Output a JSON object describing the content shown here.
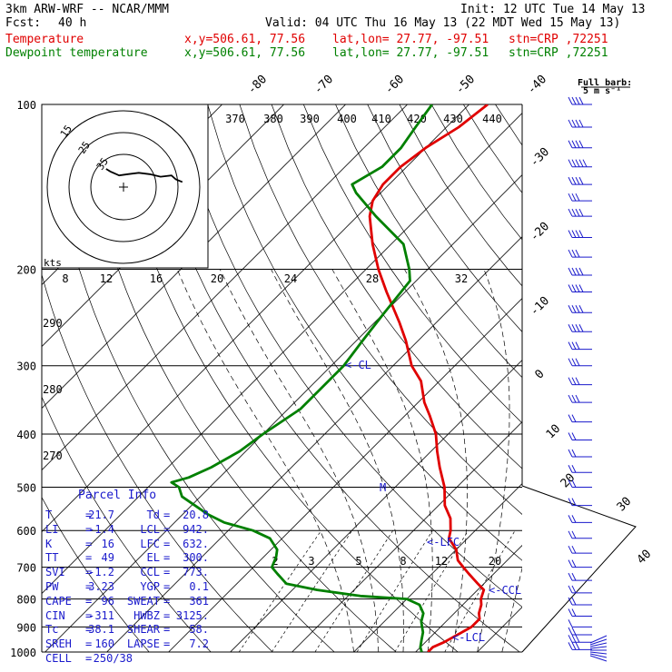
{
  "header": {
    "model": "3km ARW-WRF -- NCAR/MMM",
    "init": "Init: 12 UTC Tue 14 May 13",
    "fcst_label": "Fcst:",
    "fcst_value": "40 h",
    "valid": "Valid: 04 UTC Thu 16 May 13 (22 MDT Wed 15 May 13)",
    "temp_line": {
      "label": "Temperature",
      "xy": "x,y=506.61, 77.56",
      "latlon": "lat,lon= 27.77, -97.51",
      "stn": "stn=CRP ,72251"
    },
    "dew_line": {
      "label": "Dewpoint temperature",
      "xy": "x,y=506.61, 77.56",
      "latlon": "lat,lon= 27.77, -97.51",
      "stn": "stn=CRP ,72251"
    }
  },
  "wind_legend": {
    "line1": "Full barb:",
    "line2": "5 m s⁻¹"
  },
  "hodograph": {
    "label": "kts",
    "ring_labels": [
      "15",
      "25",
      "35"
    ]
  },
  "parcel_info": {
    "title": "Parcel Info",
    "rows": [
      {
        "a": "T",
        "av": "21.7",
        "b": "Td",
        "bv": "20.8"
      },
      {
        "a": "LI",
        "av": "-1.4",
        "b": "LCL",
        "bv": "942."
      },
      {
        "a": "K",
        "av": "16",
        "b": "LFC",
        "bv": "632."
      },
      {
        "a": "TT",
        "av": "49",
        "b": "EL",
        "bv": "300."
      },
      {
        "a": "SVI",
        "av": "-1.2",
        "b": "CCL",
        "bv": "773."
      },
      {
        "a": "PW",
        "av": "3.23",
        "b": "YGP",
        "bv": "0.1"
      },
      {
        "a": "CAPE",
        "av": "96",
        "b": "SWEAT",
        "bv": "361"
      },
      {
        "a": "CIN",
        "av": "-311",
        "b": "HWBZ",
        "bv": "3125."
      },
      {
        "a": "Tc",
        "av": "38.1",
        "b": "SHEAR",
        "bv": "58."
      },
      {
        "a": "SREH",
        "av": "160",
        "b": "LAPSE",
        "bv": "7.2"
      },
      {
        "a": "CELL",
        "av": "250/38",
        "b": "",
        "bv": ""
      }
    ]
  },
  "annotations": {
    "cl": "<-CL",
    "m": "M",
    "lfc": "<-LFC",
    "ccl": "<-CCL",
    "lcl": "<-LCL"
  },
  "colors": {
    "temperature": "#e00000",
    "dewpoint": "#008000",
    "barbs": "#1a1acc",
    "grid": "#000000"
  },
  "chart_data": {
    "type": "line",
    "title": "",
    "subtitle": "",
    "y_axis": {
      "label": "",
      "scale": "log-pressure",
      "range": [
        1000,
        100
      ],
      "ticks": [
        100,
        200,
        300,
        400,
        500,
        600,
        700,
        800,
        900,
        1000
      ]
    },
    "isotherm_labels": [
      "-80",
      "-70",
      "-60",
      "-50",
      "-40",
      "-30",
      "-20",
      "-10",
      "0",
      "10",
      "20",
      "30",
      "40"
    ],
    "theta_labels": [
      "370",
      "380",
      "390",
      "400",
      "410",
      "420",
      "430",
      "440"
    ],
    "theta_e_labels": [
      "8",
      "12",
      "16",
      "20",
      "24",
      "28",
      "32"
    ],
    "theta_left_labels": [
      "290",
      "280",
      "270"
    ],
    "mixing_ratio_labels": [
      "2",
      "3",
      "5",
      "8",
      "12",
      "20"
    ],
    "series": [
      {
        "name": "Temperature",
        "points": [
          [
            1000,
            22
          ],
          [
            980,
            22
          ],
          [
            960,
            23
          ],
          [
            930,
            24
          ],
          [
            900,
            25
          ],
          [
            870,
            25
          ],
          [
            850,
            24
          ],
          [
            820,
            23
          ],
          [
            800,
            22
          ],
          [
            770,
            21
          ],
          [
            750,
            19
          ],
          [
            720,
            16
          ],
          [
            700,
            14
          ],
          [
            680,
            12
          ],
          [
            650,
            10
          ],
          [
            620,
            7
          ],
          [
            600,
            6
          ],
          [
            570,
            4
          ],
          [
            540,
            1
          ],
          [
            500,
            -2
          ],
          [
            460,
            -6
          ],
          [
            430,
            -9
          ],
          [
            400,
            -12
          ],
          [
            370,
            -16
          ],
          [
            350,
            -19
          ],
          [
            320,
            -23
          ],
          [
            300,
            -27
          ],
          [
            270,
            -32
          ],
          [
            250,
            -36
          ],
          [
            220,
            -43
          ],
          [
            200,
            -48
          ],
          [
            180,
            -53
          ],
          [
            160,
            -58
          ],
          [
            150,
            -60
          ],
          [
            140,
            -61
          ],
          [
            130,
            -61
          ],
          [
            120,
            -60
          ],
          [
            110,
            -58
          ],
          [
            100,
            -57
          ]
        ]
      },
      {
        "name": "Dewpoint temperature",
        "points": [
          [
            1000,
            21
          ],
          [
            980,
            20
          ],
          [
            950,
            19
          ],
          [
            920,
            18
          ],
          [
            900,
            17
          ],
          [
            880,
            16
          ],
          [
            850,
            15
          ],
          [
            820,
            13
          ],
          [
            800,
            10
          ],
          [
            790,
            2
          ],
          [
            770,
            -6
          ],
          [
            750,
            -12
          ],
          [
            720,
            -15
          ],
          [
            700,
            -17
          ],
          [
            670,
            -18
          ],
          [
            650,
            -19
          ],
          [
            620,
            -22
          ],
          [
            600,
            -26
          ],
          [
            580,
            -32
          ],
          [
            560,
            -36
          ],
          [
            520,
            -43
          ],
          [
            500,
            -45
          ],
          [
            490,
            -47
          ],
          [
            480,
            -45
          ],
          [
            460,
            -43
          ],
          [
            430,
            -41
          ],
          [
            400,
            -40
          ],
          [
            360,
            -38
          ],
          [
            330,
            -38
          ],
          [
            300,
            -38
          ],
          [
            270,
            -39
          ],
          [
            240,
            -40
          ],
          [
            210,
            -41
          ],
          [
            200,
            -43
          ],
          [
            180,
            -48
          ],
          [
            160,
            -57
          ],
          [
            145,
            -64
          ],
          [
            140,
            -66
          ],
          [
            130,
            -64
          ],
          [
            120,
            -64
          ],
          [
            110,
            -65
          ],
          [
            100,
            -66
          ]
        ]
      }
    ],
    "hodograph_trace": [
      [
        0,
        0
      ],
      [
        2,
        -2
      ],
      [
        6,
        -5
      ],
      [
        10,
        -4
      ],
      [
        15,
        -3
      ],
      [
        20,
        -4
      ],
      [
        25,
        -6
      ],
      [
        30,
        -5
      ],
      [
        32,
        -8
      ],
      [
        35,
        -10
      ]
    ],
    "wind_barbs": [
      {
        "p": 100,
        "spd": 20
      },
      {
        "p": 110,
        "spd": 20
      },
      {
        "p": 120,
        "spd": 20
      },
      {
        "p": 130,
        "spd": 25
      },
      {
        "p": 140,
        "spd": 20
      },
      {
        "p": 150,
        "spd": 15
      },
      {
        "p": 160,
        "spd": 20
      },
      {
        "p": 175,
        "spd": 20
      },
      {
        "p": 190,
        "spd": 15
      },
      {
        "p": 205,
        "spd": 20
      },
      {
        "p": 220,
        "spd": 20
      },
      {
        "p": 240,
        "spd": 20
      },
      {
        "p": 260,
        "spd": 20
      },
      {
        "p": 280,
        "spd": 15
      },
      {
        "p": 300,
        "spd": 15
      },
      {
        "p": 325,
        "spd": 15
      },
      {
        "p": 350,
        "spd": 15
      },
      {
        "p": 380,
        "spd": 10
      },
      {
        "p": 410,
        "spd": 10
      },
      {
        "p": 440,
        "spd": 10
      },
      {
        "p": 470,
        "spd": 10
      },
      {
        "p": 500,
        "spd": 10
      },
      {
        "p": 540,
        "spd": 10
      },
      {
        "p": 580,
        "spd": 10
      },
      {
        "p": 620,
        "spd": 10
      },
      {
        "p": 660,
        "spd": 10
      },
      {
        "p": 700,
        "spd": 10
      },
      {
        "p": 740,
        "spd": 10
      },
      {
        "p": 780,
        "spd": 10
      },
      {
        "p": 820,
        "spd": 10
      },
      {
        "p": 860,
        "spd": 10
      },
      {
        "p": 900,
        "spd": 5
      },
      {
        "p": 930,
        "spd": 10
      },
      {
        "p": 960,
        "spd": 15
      },
      {
        "p": 990,
        "spd": 15
      }
    ]
  }
}
